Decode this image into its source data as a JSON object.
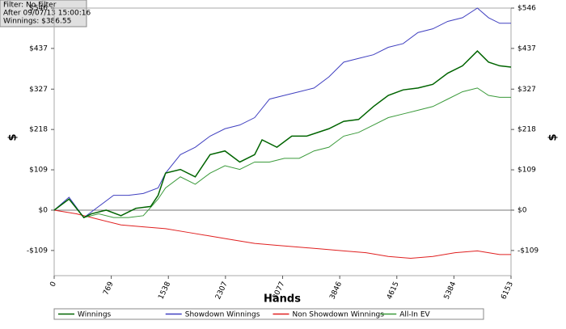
{
  "chart_data": {
    "type": "line",
    "info": [
      "Filter: No Filter",
      "After 09/07/13 15:00:16",
      "Winnings: $386.55"
    ],
    "xlabel": "Hands",
    "ylabel": "$",
    "xlim": [
      0,
      6153
    ],
    "xticks": [
      0,
      769,
      1538,
      2307,
      3077,
      3846,
      4615,
      5384,
      6153
    ],
    "ylim": [
      -177,
      546
    ],
    "yticks": [
      {
        "value": -109,
        "label": "-$109"
      },
      {
        "value": 0,
        "label": "$0"
      },
      {
        "value": 109,
        "label": "$109"
      },
      {
        "value": 218,
        "label": "$218"
      },
      {
        "value": 327,
        "label": "$327"
      },
      {
        "value": 437,
        "label": "$437"
      },
      {
        "value": 546,
        "label": "$546"
      }
    ],
    "series": [
      {
        "name": "Winnings",
        "color": "#006400",
        "x": [
          0,
          200,
          400,
          500,
          700,
          900,
          1100,
          1300,
          1400,
          1500,
          1700,
          1900,
          2100,
          2300,
          2500,
          2700,
          2800,
          3000,
          3200,
          3400,
          3700,
          3900,
          4100,
          4300,
          4500,
          4700,
          4900,
          5100,
          5300,
          5500,
          5700,
          5850,
          6000,
          6153
        ],
        "values": [
          0,
          30,
          -20,
          -10,
          0,
          -15,
          5,
          10,
          40,
          100,
          110,
          90,
          150,
          160,
          130,
          150,
          190,
          170,
          200,
          200,
          220,
          240,
          245,
          280,
          310,
          325,
          330,
          340,
          370,
          390,
          430,
          400,
          390,
          386.55
        ]
      },
      {
        "name": "Showdown Winnings",
        "color": "#4040c0",
        "x": [
          0,
          200,
          400,
          600,
          800,
          1000,
          1200,
          1400,
          1500,
          1700,
          1900,
          2100,
          2300,
          2500,
          2700,
          2900,
          3100,
          3300,
          3500,
          3700,
          3900,
          4100,
          4300,
          4500,
          4700,
          4900,
          5100,
          5300,
          5500,
          5700,
          5850,
          6000,
          6153
        ],
        "values": [
          0,
          35,
          -20,
          10,
          40,
          40,
          45,
          60,
          100,
          150,
          170,
          200,
          220,
          230,
          250,
          300,
          310,
          320,
          330,
          360,
          400,
          410,
          420,
          440,
          450,
          480,
          490,
          510,
          520,
          546,
          520,
          505,
          505
        ]
      },
      {
        "name": "Non Showdown Winnings",
        "color": "#e02020",
        "x": [
          0,
          300,
          600,
          900,
          1200,
          1500,
          1800,
          2100,
          2400,
          2700,
          3000,
          3300,
          3600,
          3900,
          4200,
          4500,
          4800,
          5100,
          5400,
          5700,
          6000,
          6153
        ],
        "values": [
          0,
          -10,
          -25,
          -40,
          -45,
          -50,
          -60,
          -70,
          -80,
          -90,
          -95,
          -100,
          -105,
          -110,
          -115,
          -125,
          -130,
          -125,
          -115,
          -110,
          -120,
          -120
        ]
      },
      {
        "name": "All-In EV",
        "color": "#3a9a3a",
        "x": [
          0,
          200,
          400,
          600,
          800,
          1000,
          1200,
          1400,
          1500,
          1700,
          1900,
          2100,
          2300,
          2500,
          2700,
          2900,
          3100,
          3300,
          3500,
          3700,
          3900,
          4100,
          4300,
          4500,
          4700,
          4900,
          5100,
          5300,
          5500,
          5700,
          5850,
          6000,
          6153
        ],
        "values": [
          0,
          30,
          -20,
          -10,
          -20,
          -20,
          -15,
          30,
          60,
          90,
          70,
          100,
          120,
          110,
          130,
          130,
          140,
          140,
          160,
          170,
          200,
          210,
          230,
          250,
          260,
          270,
          280,
          300,
          320,
          330,
          310,
          305,
          305
        ]
      }
    ]
  }
}
